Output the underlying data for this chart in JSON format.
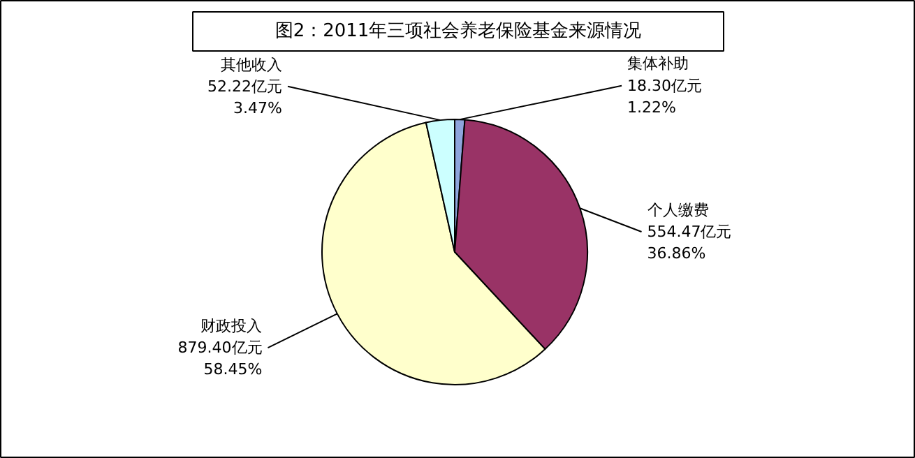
{
  "chart_data": {
    "type": "pie",
    "title": "图2：2011年三项社会养老保险基金来源情况",
    "categories": [
      "集体补助",
      "个人缴费",
      "财政投入",
      "其他收入"
    ],
    "values": [
      18.3,
      554.47,
      879.4,
      52.22
    ],
    "value_labels": [
      "18.30亿元\n1.22%",
      "554.47亿元\n36.86%",
      "879.40亿元\n58.45%",
      "52.22亿元\n3.47%"
    ],
    "colors": [
      "#8ea4dc",
      "#993366",
      "#ffffcc",
      "#ccffff"
    ]
  }
}
